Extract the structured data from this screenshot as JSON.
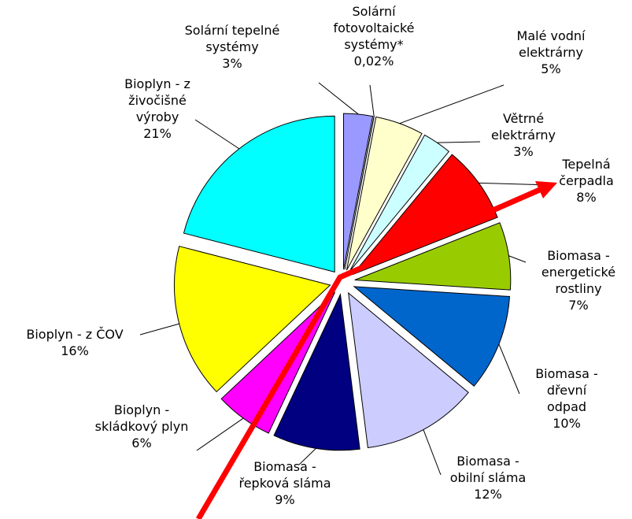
{
  "chart_data": {
    "type": "pie",
    "categories": [
      "Solární tepelné\nsystémy",
      "Solární\nfotovoltaické\nsystémy*",
      "Malé vodní\nelektrárny",
      "Větrné\nelektrárny",
      "Tepelná\nčerpadla",
      "Biomasa -\nenergetické\nrostliny",
      "Biomasa -\ndřevní odpad",
      "Biomasa -\nobilní sláma",
      "Biomasa -\nřepková sláma",
      "Bioplyn -\nskládkový plyn",
      "Bioplyn - z ČOV",
      "Bioplyn - z\nživočišné\nvýroby"
    ],
    "values": [
      3,
      0.02,
      5,
      3,
      8,
      7,
      10,
      12,
      9,
      6,
      16,
      21
    ],
    "value_labels": [
      "3%",
      "0,02%",
      "5%",
      "3%",
      "8%",
      "7%",
      "10%",
      "12%",
      "9%",
      "6%",
      "16%",
      "21%"
    ],
    "colors": [
      "#9999ff",
      "#ffffff",
      "#ffffcc",
      "#ccffff",
      "#ff0000",
      "#99cc00",
      "#0066cc",
      "#ccccff",
      "#000080",
      "#ff00ff",
      "#ffff00",
      "#00ffff"
    ]
  }
}
